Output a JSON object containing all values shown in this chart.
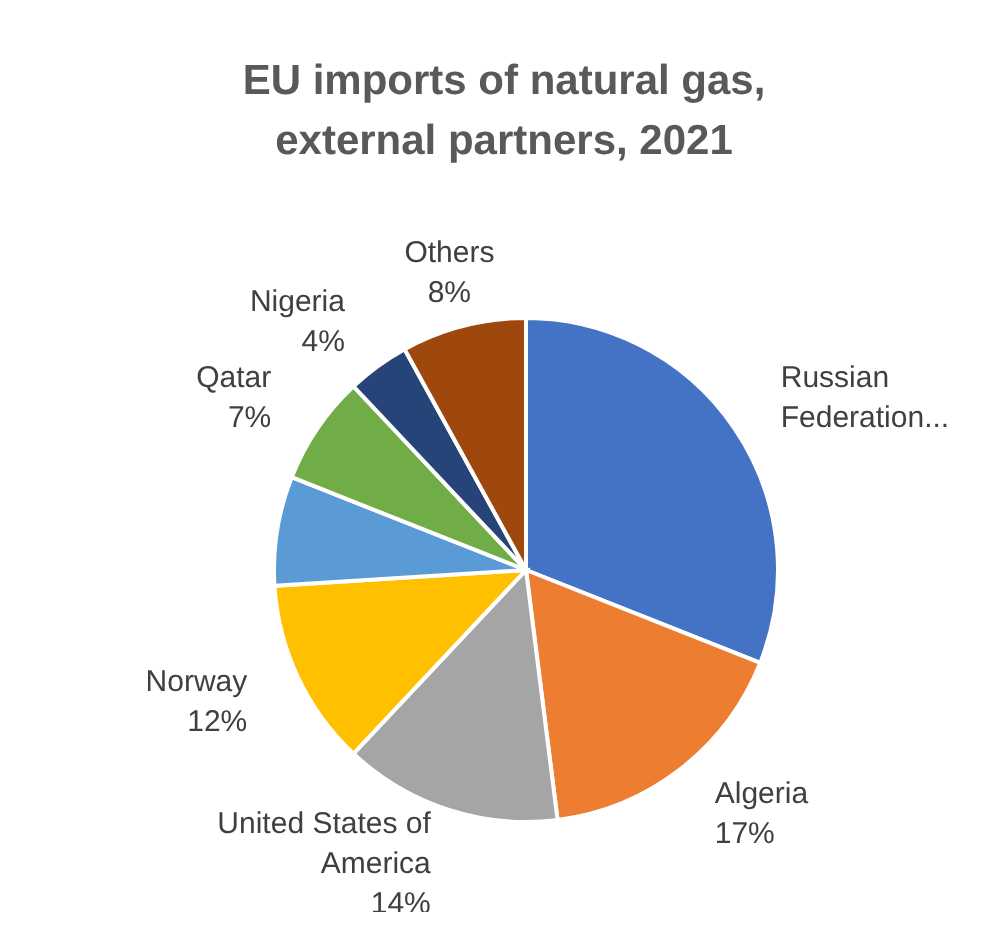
{
  "chart_data": {
    "type": "pie",
    "title": "EU imports of natural gas, external partners, 2021",
    "categories": [
      "Russian Federation...",
      "Algeria",
      "United States of America",
      "Norway",
      null,
      "Qatar",
      "Nigeria",
      "Others"
    ],
    "values": [
      31,
      17,
      14,
      12,
      7,
      7,
      4,
      8
    ],
    "colors": [
      "#4472c4",
      "#ed7d31",
      "#a5a5a5",
      "#ffc000",
      "#5b9bd5",
      "#70ad47",
      "#264478",
      "#9e480e"
    ],
    "value_labels": [
      null,
      "17%",
      "14%",
      "12%",
      null,
      "7%",
      "4%",
      "8%"
    ],
    "legend": false
  }
}
